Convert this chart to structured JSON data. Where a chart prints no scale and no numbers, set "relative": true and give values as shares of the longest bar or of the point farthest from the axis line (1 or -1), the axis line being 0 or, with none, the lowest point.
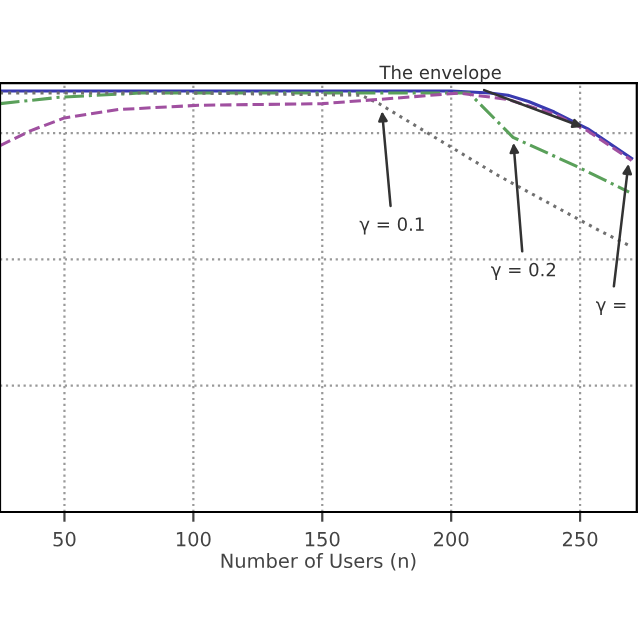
{
  "chart_data": {
    "type": "line",
    "relative": true,
    "xlabel": "Number of Users (n)",
    "xlim": [
      25,
      272
    ],
    "xticks": [
      50,
      100,
      150,
      200,
      250
    ],
    "grid": true,
    "series": [
      {
        "color": "#3a3ab0",
        "line_style": "solid",
        "x": [
          25,
          100,
          200,
          215,
          222,
          230,
          240,
          253,
          270
        ],
        "values": [
          1,
          1,
          1,
          0.995,
          0.99,
          0.975,
          0.95,
          0.91,
          0.84
        ]
      },
      {
        "color": "#5aa05a",
        "line_style": "dashdot",
        "x": [
          25,
          48,
          79,
          150,
          207,
          224,
          249,
          269
        ],
        "values": [
          0.97,
          0.985,
          0.995,
          0.995,
          0.995,
          0.89,
          0.82,
          0.76
        ]
      },
      {
        "color": "#707070",
        "line_style": "dotted",
        "x": [
          25,
          100,
          165,
          172,
          218,
          257,
          270
        ],
        "values": [
          0.995,
          0.995,
          0.99,
          0.97,
          0.8,
          0.67,
          0.63
        ]
      },
      {
        "color": "#a050a0",
        "line_style": "dashed",
        "x": [
          25,
          37,
          50,
          71,
          102,
          150,
          172,
          203,
          222,
          240,
          253,
          270
        ],
        "values": [
          0.87,
          0.906,
          0.936,
          0.956,
          0.966,
          0.97,
          0.98,
          0.995,
          0.98,
          0.945,
          0.905,
          0.835
        ]
      }
    ],
    "annotations": [
      {
        "text": "The envelope",
        "x": 253,
        "y": 0.91
      },
      {
        "text": "γ = 0.1",
        "x": 173,
        "y": 0.965
      },
      {
        "text": "γ = 0.2",
        "x": 224,
        "y": 0.89
      },
      {
        "text": "γ =",
        "x": 269,
        "y": 0.84
      }
    ]
  }
}
